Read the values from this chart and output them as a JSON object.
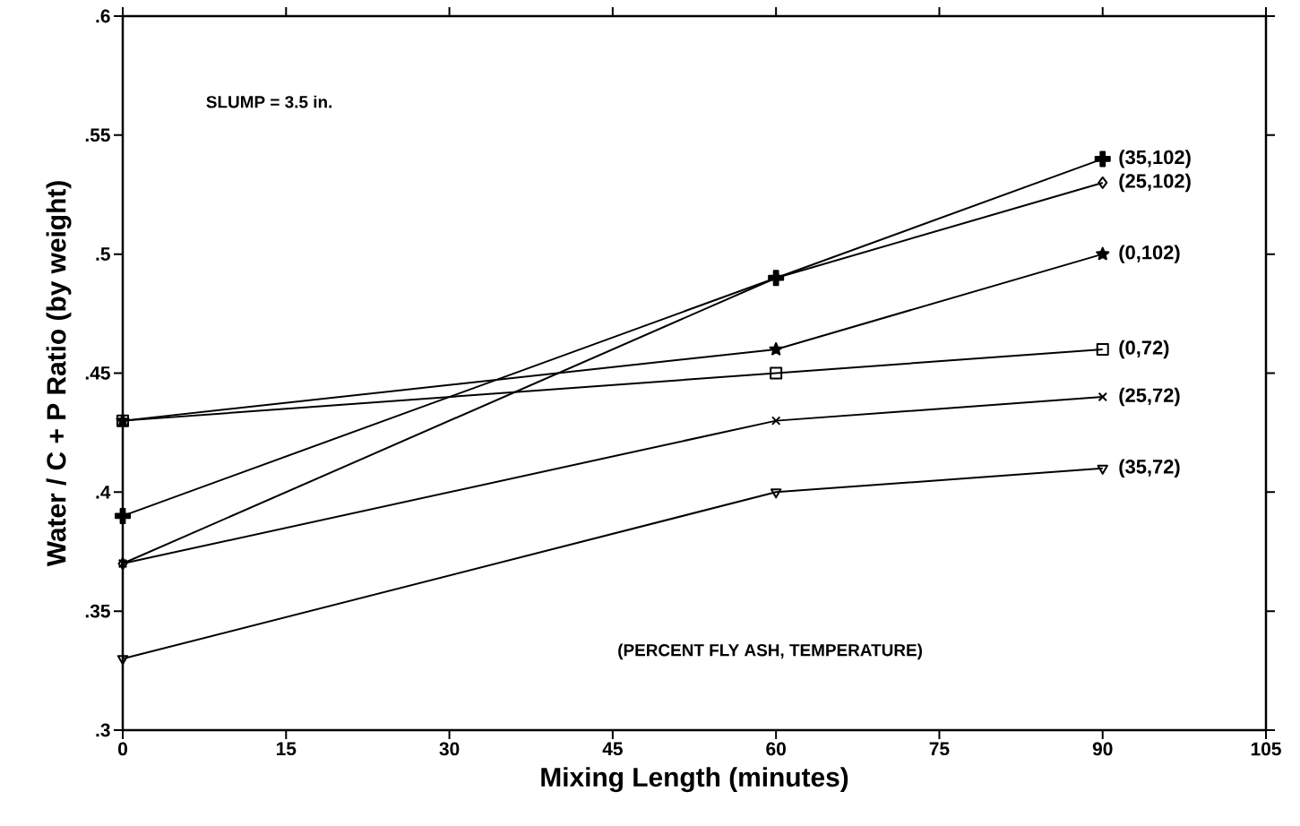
{
  "chart_data": {
    "type": "line",
    "xlabel": "Mixing Length (minutes)",
    "ylabel": "Water / C + P Ratio (by weight)",
    "annotations": [
      "SLUMP = 3.5 in.",
      "(PERCENT FLY ASH, TEMPERATURE)"
    ],
    "x": [
      0,
      60,
      90
    ],
    "series": [
      {
        "name": "(35,102)",
        "color": "#000000",
        "marker": "plus",
        "values": [
          0.39,
          0.49,
          0.54
        ]
      },
      {
        "name": "(25,102)",
        "color": "#000000",
        "marker": "diamond",
        "values": [
          0.37,
          0.49,
          0.53
        ]
      },
      {
        "name": "(0,72)",
        "color": "#000000",
        "marker": "square",
        "values": [
          0.43,
          0.45,
          0.46
        ]
      },
      {
        "name": "(0,102)",
        "color": "#000000",
        "marker": "star",
        "values": [
          0.43,
          0.46,
          0.5
        ]
      },
      {
        "name": "(25,72)",
        "color": "#000000",
        "marker": "cross",
        "values": [
          0.37,
          0.43,
          0.44
        ]
      },
      {
        "name": "(35,72)",
        "color": "#000000",
        "marker": "triangle",
        "values": [
          0.33,
          0.4,
          0.41
        ]
      }
    ],
    "xlim": [
      0,
      105
    ],
    "xticks": [
      0,
      15,
      30,
      45,
      60,
      75,
      90,
      105
    ],
    "ylim": [
      0.3,
      0.6
    ],
    "yticks": [
      {
        "value": 0.3,
        "label": ".3"
      },
      {
        "value": 0.35,
        "label": ".35"
      },
      {
        "value": 0.4,
        "label": ".4"
      },
      {
        "value": 0.45,
        "label": ".45"
      },
      {
        "value": 0.5,
        "label": ".5"
      },
      {
        "value": 0.55,
        "label": ".55"
      },
      {
        "value": 0.6,
        "label": ".6"
      }
    ],
    "grid": false,
    "line_style": "solid"
  }
}
